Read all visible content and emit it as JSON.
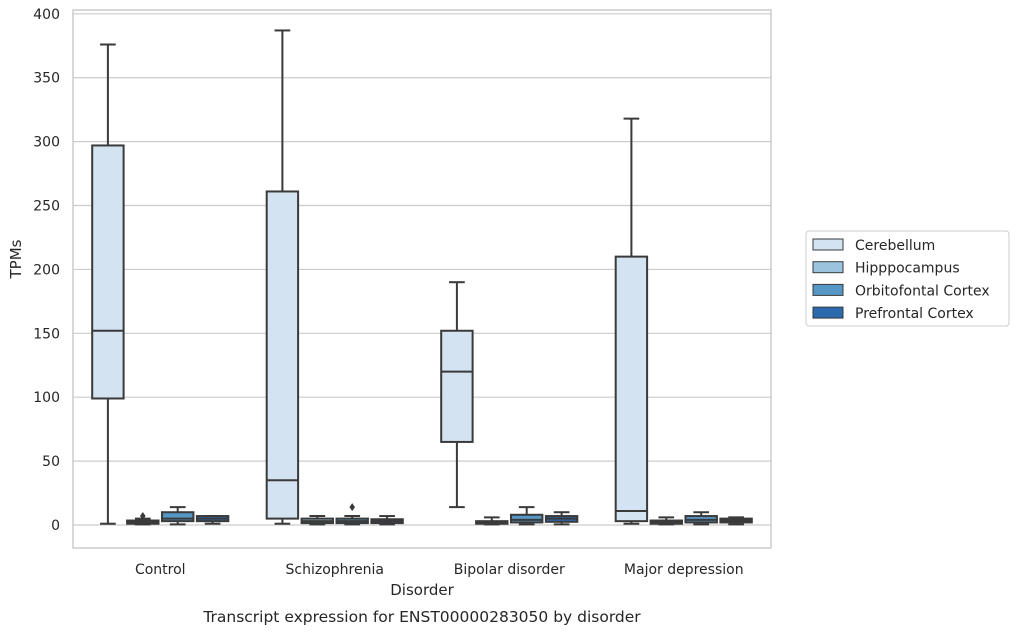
{
  "chart_data": {
    "type": "box",
    "xlabel": "Disorder",
    "ylabel": "TPMs",
    "caption": "Transcript expression for ENST00000283050 by disorder",
    "ylim": [
      -18,
      403
    ],
    "yticks": [
      0,
      50,
      100,
      150,
      200,
      250,
      300,
      350,
      400
    ],
    "grid": true,
    "legend_position": "right",
    "categories": [
      "Control",
      "Schizophrenia",
      "Bipolar disorder",
      "Major depression"
    ],
    "series": [
      {
        "name": "Cerebellum",
        "color": "#d3e3f1",
        "boxes": [
          {
            "whislo": 1,
            "q1": 99,
            "med": 152,
            "q3": 297,
            "whishi": 376,
            "fliers": []
          },
          {
            "whislo": 1,
            "q1": 5,
            "med": 35,
            "q3": 261,
            "whishi": 387,
            "fliers": []
          },
          {
            "whislo": 14,
            "q1": 65,
            "med": 120,
            "q3": 152,
            "whishi": 190,
            "fliers": []
          },
          {
            "whislo": 1,
            "q1": 3,
            "med": 11,
            "q3": 210,
            "whishi": 318,
            "fliers": []
          }
        ]
      },
      {
        "name": "Hipppocampus",
        "color": "#9ac3dd",
        "boxes": [
          {
            "whislo": 0.5,
            "q1": 1,
            "med": 2,
            "q3": 3.5,
            "whishi": 5,
            "fliers": [
              7
            ]
          },
          {
            "whislo": 0.5,
            "q1": 1.5,
            "med": 3,
            "q3": 5,
            "whishi": 7,
            "fliers": []
          },
          {
            "whislo": 0.5,
            "q1": 1,
            "med": 2,
            "q3": 3,
            "whishi": 6,
            "fliers": []
          },
          {
            "whislo": 0.5,
            "q1": 1,
            "med": 2,
            "q3": 3.5,
            "whishi": 6,
            "fliers": []
          }
        ]
      },
      {
        "name": "Orbitofontal Cortex",
        "color": "#5597c5",
        "boxes": [
          {
            "whislo": 0.5,
            "q1": 3,
            "med": 5,
            "q3": 10,
            "whishi": 14,
            "fliers": []
          },
          {
            "whislo": 0.5,
            "q1": 1.5,
            "med": 3,
            "q3": 5,
            "whishi": 7,
            "fliers": [
              14
            ]
          },
          {
            "whislo": 0.5,
            "q1": 2,
            "med": 4,
            "q3": 8,
            "whishi": 14,
            "fliers": []
          },
          {
            "whislo": 0.5,
            "q1": 2,
            "med": 4,
            "q3": 7,
            "whishi": 10,
            "fliers": []
          }
        ]
      },
      {
        "name": "Prefrontal Cortex",
        "color": "#2a6aad",
        "boxes": [
          {
            "whislo": 1,
            "q1": 3,
            "med": 5,
            "q3": 7,
            "whishi": 7,
            "fliers": []
          },
          {
            "whislo": 0.5,
            "q1": 1.5,
            "med": 3,
            "q3": 4.5,
            "whishi": 7,
            "fliers": []
          },
          {
            "whislo": 0.5,
            "q1": 2.5,
            "med": 5,
            "q3": 7,
            "whishi": 10,
            "fliers": []
          },
          {
            "whislo": 0.5,
            "q1": 2,
            "med": 3.5,
            "q3": 5,
            "whishi": 6,
            "fliers": []
          }
        ]
      }
    ]
  }
}
